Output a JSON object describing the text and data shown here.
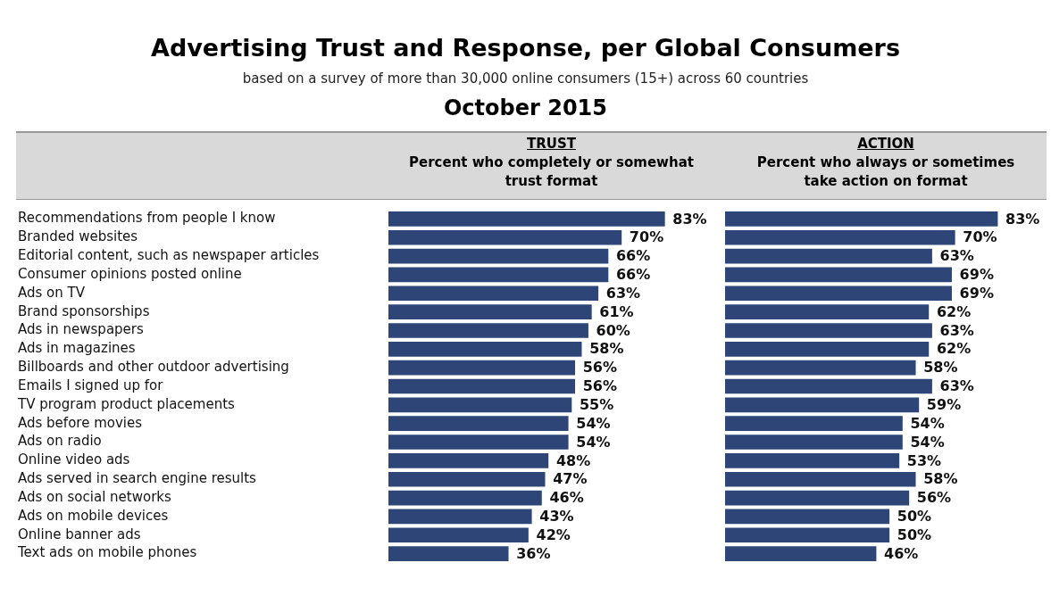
{
  "chart_data": [
    {
      "type": "other",
      "title": "Advertising Trust and Response, per Global Consumers",
      "subtitle": "based on a survey of more than 30,000 online consumers (15+) across 60 countries",
      "annotations": [
        "October 2015"
      ]
    },
    {
      "type": "bar",
      "orientation": "horizontal",
      "title": "TRUST",
      "subtitle": "Percent who completely or somewhat trust format",
      "tick_labels": "y",
      "legend": false,
      "grid": false,
      "categories": [
        "Recommendations from people I know",
        "Branded websites",
        "Editorial content, such as newspaper articles",
        "Consumer opinions posted online",
        "Ads on TV",
        "Brand sponsorships",
        "Ads in newspapers",
        "Ads in magazines",
        "Billboards and other outdoor advertising",
        "Emails I signed up for",
        "TV program product placements",
        "Ads before movies",
        "Ads on radio",
        "Online video ads",
        "Ads served in search engine results",
        "Ads on social networks",
        "Ads on mobile devices",
        "Online banner ads",
        "Text ads on mobile phones"
      ],
      "color": "#2d4677",
      "values": [
        83,
        70,
        66,
        66,
        63,
        61,
        60,
        58,
        56,
        56,
        55,
        54,
        54,
        48,
        47,
        46,
        43,
        42,
        36
      ],
      "value_labels": [
        "83%",
        "70%",
        "66%",
        "66%",
        "63%",
        "61%",
        "60%",
        "58%",
        "56%",
        "56%",
        "55%",
        "54%",
        "54%",
        "48%",
        "47%",
        "46%",
        "43%",
        "42%",
        "36%"
      ]
    },
    {
      "type": "bar",
      "orientation": "horizontal",
      "title": "ACTION",
      "subtitle": "Percent who always or sometimes take action on format",
      "tick_labels": false,
      "legend": false,
      "grid": false,
      "categories": [
        null,
        null,
        null,
        null,
        null,
        null,
        null,
        null,
        null,
        null,
        null,
        null,
        null,
        null,
        null,
        null,
        null,
        null,
        null
      ],
      "color": "#2d4677",
      "values": [
        83,
        70,
        63,
        69,
        69,
        62,
        63,
        62,
        58,
        63,
        59,
        54,
        54,
        53,
        58,
        56,
        50,
        50,
        46
      ],
      "value_labels": [
        "83%",
        "70%",
        "63%",
        "69%",
        "69%",
        "62%",
        "63%",
        "62%",
        "58%",
        "63%",
        "59%",
        "54%",
        "54%",
        "53%",
        "58%",
        "56%",
        "50%",
        "50%",
        "46%"
      ]
    }
  ]
}
